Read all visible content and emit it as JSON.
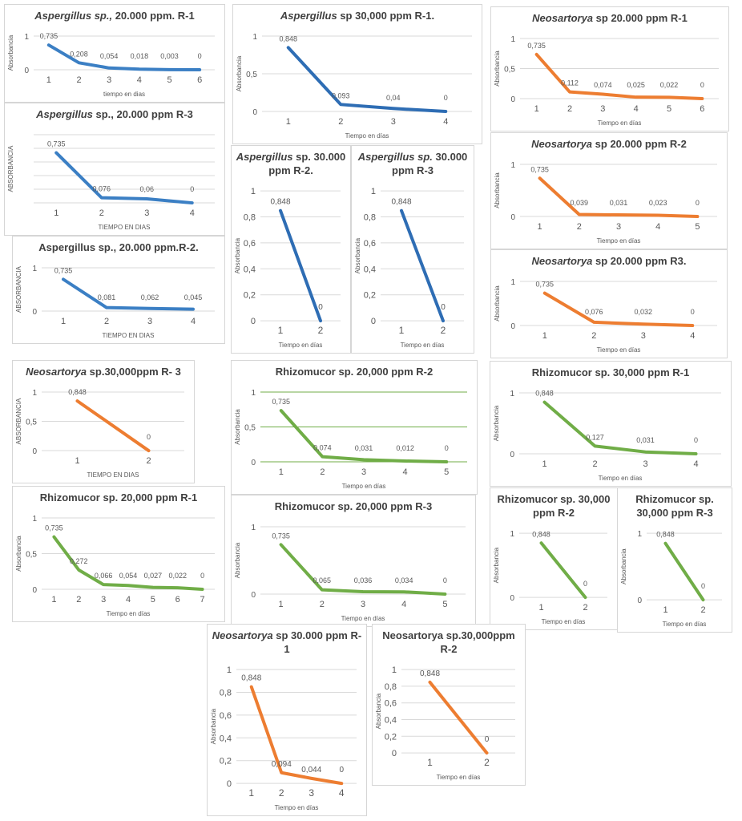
{
  "chart_data": [
    {
      "type": "line",
      "title_italic": "Aspergillus sp.,",
      "title_rest": " 20.000 ppm. R-1",
      "xlabel": "tiempo en dias",
      "ylabel": "Absorbancia",
      "categories": [
        "1",
        "2",
        "3",
        "4",
        "5",
        "6"
      ],
      "values": [
        0.735,
        0.208,
        0.054,
        0.018,
        0.003,
        0
      ],
      "labels": [
        "0,735",
        "0,208",
        "0,054",
        "0,018",
        "0,003",
        "0"
      ],
      "yticks": [
        "0",
        "1"
      ],
      "ylim": [
        0,
        1
      ],
      "color": "#3b7fc4"
    },
    {
      "type": "line",
      "title_italic": "Aspergillus",
      "title_rest": " sp., 20.000 ppm  R-3",
      "xlabel": "TIEMPO EN DIAS",
      "ylabel": "ABSORBANCIA",
      "categories": [
        "1",
        "2",
        "3",
        "4"
      ],
      "values": [
        0.735,
        0.076,
        0.06,
        0
      ],
      "labels": [
        "0,735",
        "0,076",
        "0,06",
        "0"
      ],
      "yticks": [],
      "ylim": [
        0,
        1
      ],
      "color": "#3b7fc4"
    },
    {
      "type": "line",
      "title_italic": "",
      "title_rest": "Aspergillus sp., 20.000 ppm.R-2.",
      "xlabel": "TIEMPO EN DIAS",
      "ylabel": "ABSORBANCIA",
      "categories": [
        "1",
        "2",
        "3",
        "4"
      ],
      "values": [
        0.735,
        0.081,
        0.062,
        0.045
      ],
      "labels": [
        "0,735",
        "0,081",
        "0,062",
        "0,045"
      ],
      "yticks": [
        "0",
        "1"
      ],
      "ylim": [
        0,
        1
      ],
      "color": "#3b7fc4"
    },
    {
      "type": "line",
      "title_italic": "Aspergillus",
      "title_rest": " sp 30,000 ppm R-1.",
      "xlabel": "Tiempo en días",
      "ylabel": "Absorbancia",
      "categories": [
        "1",
        "2",
        "3",
        "4"
      ],
      "values": [
        0.848,
        0.093,
        0.04,
        0
      ],
      "labels": [
        "0,848",
        "0,093",
        "0,04",
        "0"
      ],
      "yticks": [
        "0",
        "0,5",
        "1"
      ],
      "ylim": [
        0,
        1
      ],
      "color": "#2e6db4"
    },
    {
      "type": "line",
      "title_italic": "Aspergillus",
      "title_rest": " sp. 30.000 ppm R-2.",
      "xlabel": "Tiempo en días",
      "ylabel": "Absorbancia",
      "categories": [
        "1",
        "2"
      ],
      "values": [
        0.848,
        0
      ],
      "labels": [
        "0,848",
        "0"
      ],
      "yticks": [
        "0",
        "0,2",
        "0,4",
        "0,6",
        "0,8",
        "1"
      ],
      "ylim": [
        0,
        1
      ],
      "color": "#2e6db4"
    },
    {
      "type": "line",
      "title_italic": "Aspergillus sp.",
      "title_rest": " 30.000 ppm R-3",
      "xlabel": "Tiempo en días",
      "ylabel": "Absorbancia",
      "categories": [
        "1",
        "2"
      ],
      "values": [
        0.848,
        0
      ],
      "labels": [
        "0,848",
        "0"
      ],
      "yticks": [
        "0",
        "0,2",
        "0,4",
        "0,6",
        "0,8",
        "1"
      ],
      "ylim": [
        0,
        1
      ],
      "color": "#2e6db4"
    },
    {
      "type": "line",
      "title_italic": "Neosartorya",
      "title_rest": " sp 20.000 ppm R-1",
      "xlabel": "Tiempo en días",
      "ylabel": "Absorbancia",
      "categories": [
        "1",
        "2",
        "3",
        "4",
        "5",
        "6"
      ],
      "values": [
        0.735,
        0.112,
        0.074,
        0.025,
        0.022,
        0
      ],
      "labels": [
        "0,735",
        "0,112",
        "0,074",
        "0,025",
        "0,022",
        "0"
      ],
      "yticks": [
        "0",
        "0,5",
        "1"
      ],
      "ylim": [
        0,
        1
      ],
      "color": "#ed7d31"
    },
    {
      "type": "line",
      "title_italic": "Neosartorya",
      "title_rest": " sp 20.000 ppm R-2",
      "xlabel": "Tiempo en días",
      "ylabel": "Absorbancia",
      "categories": [
        "1",
        "2",
        "3",
        "4",
        "5"
      ],
      "values": [
        0.735,
        0.039,
        0.031,
        0.023,
        0
      ],
      "labels": [
        "0,735",
        "0,039",
        "0,031",
        "0,023",
        "0"
      ],
      "yticks": [
        "0",
        "1"
      ],
      "ylim": [
        0,
        1
      ],
      "color": "#ed7d31"
    },
    {
      "type": "line",
      "title_italic": "Neosartorya",
      "title_rest": " sp 20.000 ppm R3.",
      "xlabel": "Tiempo en días",
      "ylabel": "Absorbancia",
      "categories": [
        "1",
        "2",
        "3",
        "4"
      ],
      "values": [
        0.735,
        0.076,
        0.032,
        0
      ],
      "labels": [
        "0,735",
        "0,076",
        "0,032",
        "0"
      ],
      "yticks": [
        "0",
        "1"
      ],
      "ylim": [
        0,
        1
      ],
      "color": "#ed7d31"
    },
    {
      "type": "line",
      "title_italic": "Neosartorya",
      "title_rest": " sp.30,000ppm R- 3",
      "xlabel": "TIEMPO EN DIAS",
      "ylabel": "ABSORBANCIA",
      "categories": [
        "1",
        "2"
      ],
      "values": [
        0.848,
        0
      ],
      "labels": [
        "0,848",
        "0"
      ],
      "yticks": [
        "0",
        "0,5",
        "1"
      ],
      "ylim": [
        0,
        1
      ],
      "color": "#ed7d31"
    },
    {
      "type": "line",
      "title_italic": "",
      "title_rest": "Rhizomucor sp. 20,000 ppm R-2",
      "xlabel": "Tiempo en días",
      "ylabel": "Absorbancia",
      "categories": [
        "1",
        "2",
        "3",
        "4",
        "5"
      ],
      "values": [
        0.735,
        0.074,
        0.031,
        0.012,
        0
      ],
      "labels": [
        "0,735",
        "0,074",
        "0,031",
        "0,012",
        "0"
      ],
      "yticks": [
        "0",
        "0,5",
        "1"
      ],
      "ylim": [
        0,
        1
      ],
      "color": "#70ad47",
      "grid_color": "#70ad47"
    },
    {
      "type": "line",
      "title_italic": "",
      "title_rest": "Rhizomucor sp. 20,000 ppm R-1",
      "xlabel": "Tiempo en días",
      "ylabel": "Absorbancia",
      "categories": [
        "1",
        "2",
        "3",
        "4",
        "5",
        "6",
        "7"
      ],
      "values": [
        0.735,
        0.272,
        0.066,
        0.054,
        0.027,
        0.022,
        0
      ],
      "labels": [
        "0,735",
        "0,272",
        "0,066",
        "0,054",
        "0,027",
        "0,022",
        "0"
      ],
      "yticks": [
        "0",
        "0,5",
        "1"
      ],
      "ylim": [
        0,
        1
      ],
      "color": "#70ad47"
    },
    {
      "type": "line",
      "title_italic": "",
      "title_rest": "Rhizomucor sp. 20,000 ppm R-3",
      "xlabel": "Tiempo en días",
      "ylabel": "Absorbancia",
      "categories": [
        "1",
        "2",
        "3",
        "4",
        "5"
      ],
      "values": [
        0.735,
        0.065,
        0.036,
        0.034,
        0
      ],
      "labels": [
        "0,735",
        "0,065",
        "0,036",
        "0,034",
        "0"
      ],
      "yticks": [
        "0",
        "1"
      ],
      "ylim": [
        0,
        1
      ],
      "color": "#70ad47"
    },
    {
      "type": "line",
      "title_italic": "",
      "title_rest": "Rhizomucor sp. 30,000 ppm R-1",
      "xlabel": "Tiempo en días",
      "ylabel": "Absorbancia",
      "categories": [
        "1",
        "2",
        "3",
        "4"
      ],
      "values": [
        0.848,
        0.127,
        0.031,
        0
      ],
      "labels": [
        "0,848",
        "0,127",
        "0,031",
        "0"
      ],
      "yticks": [
        "0",
        "1"
      ],
      "ylim": [
        0,
        1
      ],
      "color": "#70ad47"
    },
    {
      "type": "line",
      "title_italic": "",
      "title_rest": "Rhizomucor sp. 30,000 ppm R-2",
      "xlabel": "Tiempo en días",
      "ylabel": "Absorbancia",
      "categories": [
        "1",
        "2"
      ],
      "values": [
        0.848,
        0
      ],
      "labels": [
        "0,848",
        "0"
      ],
      "yticks": [
        "0",
        "1"
      ],
      "ylim": [
        0,
        1
      ],
      "color": "#70ad47"
    },
    {
      "type": "line",
      "title_italic": "",
      "title_rest": "Rhizomucor sp. 30,000 ppm R-3",
      "xlabel": "Tiempo en días",
      "ylabel": "Absorbancia",
      "categories": [
        "1",
        "2"
      ],
      "values": [
        0.848,
        0
      ],
      "labels": [
        "0,848",
        "0"
      ],
      "yticks": [
        "0",
        "1"
      ],
      "ylim": [
        0,
        1
      ],
      "color": "#70ad47"
    },
    {
      "type": "line",
      "title_italic": "Neosartorya",
      "title_rest": " sp 30.000 ppm R-1",
      "xlabel": "Tiempo en días",
      "ylabel": "Absorbancia",
      "categories": [
        "1",
        "2",
        "3",
        "4"
      ],
      "values": [
        0.848,
        0.094,
        0.044,
        0
      ],
      "labels": [
        "0,848",
        "0,094",
        "0,044",
        "0"
      ],
      "yticks": [
        "0",
        "0,2",
        "0,4",
        "0,6",
        "0,8",
        "1"
      ],
      "ylim": [
        0,
        1
      ],
      "color": "#ed7d31"
    },
    {
      "type": "line",
      "title_italic": "",
      "title_rest": "Neosartorya sp.30,000ppm R-2",
      "xlabel": "Tiempo en días",
      "ylabel": "Absorbancia",
      "categories": [
        "1",
        "2"
      ],
      "values": [
        0.848,
        0
      ],
      "labels": [
        "0,848",
        "0"
      ],
      "yticks": [
        "0",
        "0,2",
        "0,4",
        "0,6",
        "0,8",
        "1"
      ],
      "ylim": [
        0,
        1
      ],
      "color": "#ed7d31"
    }
  ]
}
